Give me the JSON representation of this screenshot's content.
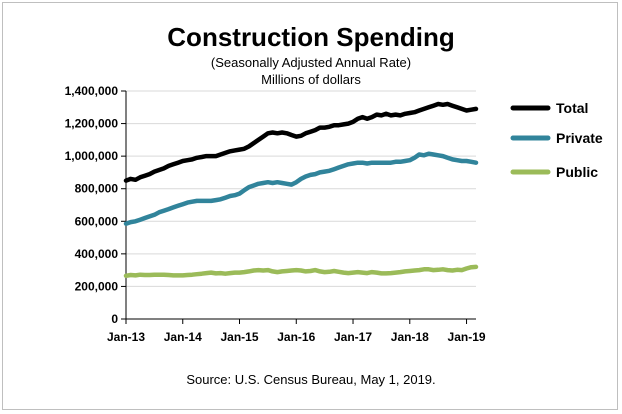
{
  "chart_data": {
    "type": "line",
    "title": "Construction Spending",
    "subtitle_line1": "(Seasonally Adjusted Annual Rate)",
    "subtitle_line2": "Millions of dollars",
    "source": "Source: U.S. Census Bureau, May 1, 2019.",
    "xlabel": "",
    "ylabel": "",
    "ylim": [
      0,
      1400000
    ],
    "yticks": [
      0,
      200000,
      400000,
      600000,
      800000,
      1000000,
      1200000,
      1400000
    ],
    "ytick_labels": [
      "0",
      "200,000",
      "400,000",
      "600,000",
      "800,000",
      "1,000,000",
      "1,200,000",
      "1,400,000"
    ],
    "xtick_labels": [
      "Jan-13",
      "Jan-14",
      "Jan-15",
      "Jan-16",
      "Jan-17",
      "Jan-18",
      "Jan-19"
    ],
    "x_start": "Jan-13",
    "x_end": "Mar-19",
    "grid": true,
    "legend_position": "right",
    "series": [
      {
        "name": "Total",
        "color": "#000000",
        "values": [
          850000,
          860000,
          855000,
          870000,
          880000,
          890000,
          905000,
          915000,
          925000,
          940000,
          950000,
          960000,
          970000,
          975000,
          980000,
          990000,
          995000,
          1000000,
          1000000,
          1000000,
          1010000,
          1020000,
          1030000,
          1035000,
          1040000,
          1045000,
          1060000,
          1080000,
          1100000,
          1120000,
          1140000,
          1145000,
          1140000,
          1145000,
          1140000,
          1130000,
          1120000,
          1125000,
          1140000,
          1150000,
          1160000,
          1175000,
          1175000,
          1180000,
          1190000,
          1190000,
          1195000,
          1200000,
          1210000,
          1230000,
          1240000,
          1230000,
          1240000,
          1255000,
          1250000,
          1260000,
          1250000,
          1255000,
          1250000,
          1260000,
          1265000,
          1270000,
          1280000,
          1290000,
          1300000,
          1310000,
          1320000,
          1315000,
          1320000,
          1310000,
          1300000,
          1290000,
          1280000,
          1285000,
          1290000
        ]
      },
      {
        "name": "Private",
        "color": "#31849b",
        "values": [
          585000,
          595000,
          600000,
          610000,
          620000,
          630000,
          640000,
          655000,
          665000,
          675000,
          685000,
          695000,
          705000,
          715000,
          720000,
          725000,
          725000,
          725000,
          725000,
          730000,
          735000,
          745000,
          755000,
          760000,
          770000,
          790000,
          810000,
          820000,
          830000,
          835000,
          840000,
          835000,
          840000,
          835000,
          830000,
          825000,
          840000,
          860000,
          875000,
          885000,
          890000,
          900000,
          905000,
          910000,
          920000,
          930000,
          940000,
          950000,
          955000,
          960000,
          960000,
          955000,
          960000,
          960000,
          960000,
          960000,
          960000,
          965000,
          965000,
          970000,
          975000,
          990000,
          1010000,
          1005000,
          1015000,
          1010000,
          1005000,
          1000000,
          990000,
          980000,
          975000,
          970000,
          970000,
          965000,
          960000
        ]
      },
      {
        "name": "Public",
        "color": "#9bbb59",
        "values": [
          265000,
          270000,
          268000,
          272000,
          270000,
          270000,
          272000,
          272000,
          272000,
          270000,
          268000,
          268000,
          268000,
          270000,
          272000,
          275000,
          278000,
          282000,
          285000,
          280000,
          282000,
          278000,
          282000,
          285000,
          285000,
          288000,
          292000,
          298000,
          300000,
          298000,
          300000,
          292000,
          288000,
          292000,
          295000,
          298000,
          300000,
          298000,
          292000,
          295000,
          300000,
          292000,
          288000,
          290000,
          295000,
          290000,
          285000,
          282000,
          285000,
          288000,
          285000,
          282000,
          288000,
          285000,
          280000,
          280000,
          282000,
          285000,
          288000,
          292000,
          295000,
          298000,
          300000,
          305000,
          305000,
          300000,
          302000,
          305000,
          300000,
          298000,
          302000,
          300000,
          310000,
          318000,
          320000
        ]
      }
    ]
  }
}
